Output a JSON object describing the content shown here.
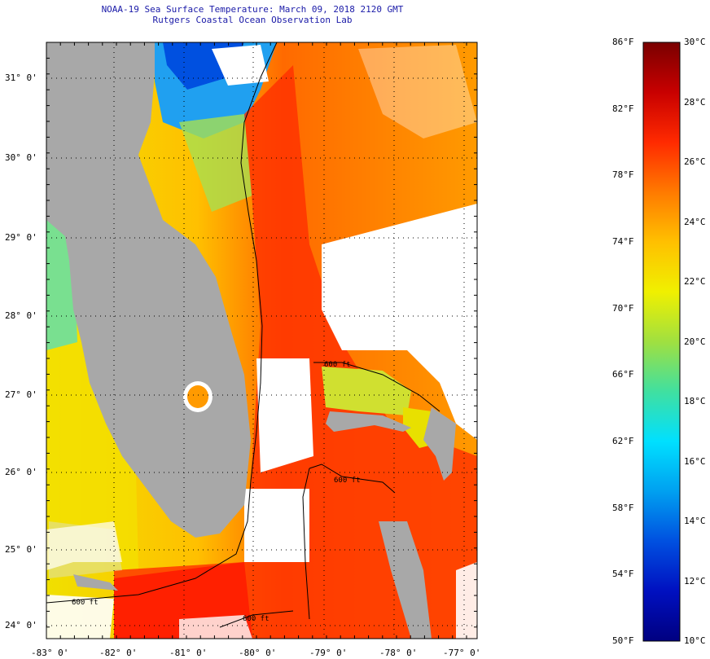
{
  "title": {
    "line1": "NOAA-19 Sea Surface Temperature:  March 09, 2018 2120 GMT",
    "line2": "Rutgers Coastal Ocean Observation Lab"
  },
  "map": {
    "lat_labels": [
      "31° 0'",
      "30° 0'",
      "29° 0'",
      "28° 0'",
      "27° 0'",
      "26° 0'",
      "25° 0'",
      "24° 0'"
    ],
    "lon_labels": [
      "-83° 0'",
      "-82° 0'",
      "-81° 0'",
      "-80° 0'",
      "-79° 0'",
      "-78° 0'",
      "-77° 0'"
    ],
    "contour_labels": [
      "600 ft",
      "600 ft",
      "600 ft",
      "600 ft"
    ],
    "colors": {
      "land": "#a8a8a8",
      "cloud": "#ffffff",
      "contour": "#000000"
    }
  },
  "colorbar": {
    "fahrenheit": [
      "86°F",
      "82°F",
      "78°F",
      "74°F",
      "70°F",
      "66°F",
      "62°F",
      "58°F",
      "54°F",
      "50°F"
    ],
    "celsius": [
      "30°C",
      "28°C",
      "26°C",
      "24°C",
      "22°C",
      "20°C",
      "18°C",
      "16°C",
      "14°C",
      "12°C",
      "10°C"
    ],
    "stops": [
      "#7a0000",
      "#c80000",
      "#ff2a00",
      "#ff7a00",
      "#ffc000",
      "#f0f000",
      "#a0e040",
      "#40e0a0",
      "#00e0ff",
      "#00a0f0",
      "#0050e0",
      "#0010c0",
      "#000080"
    ]
  }
}
